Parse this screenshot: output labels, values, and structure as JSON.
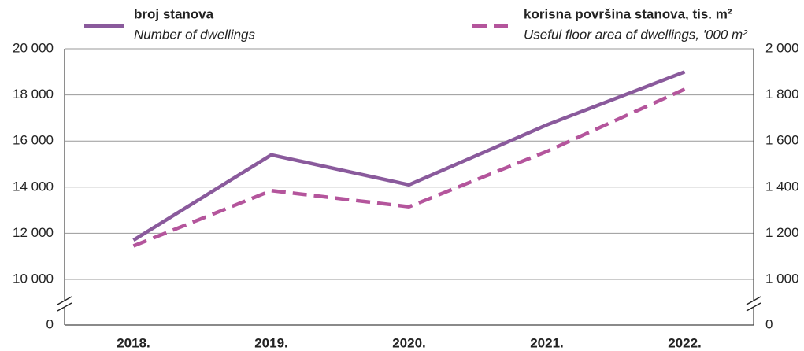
{
  "chart_data": {
    "type": "line",
    "categories": [
      "2018.",
      "2019.",
      "2020.",
      "2021.",
      "2022."
    ],
    "series": [
      {
        "name": "broj stanova",
        "name_en": "Number of dwellings",
        "color": "#8a5a9c",
        "dash": false,
        "values": [
          11700,
          15400,
          14100,
          16700,
          19000
        ]
      },
      {
        "name": "korisna površina stanova, tis. m²",
        "name_en": "Useful floor area of dwellings, '000 m²",
        "color": "#b4559c",
        "dash": true,
        "axis": "y2",
        "values": [
          1145,
          1385,
          1315,
          1555,
          1825
        ]
      }
    ],
    "ylim": [
      0,
      20000
    ],
    "y_break": [
      0,
      10000
    ],
    "yticks": [
      {
        "value": 0,
        "label": "0"
      },
      {
        "value": 10000,
        "label": "10 000"
      },
      {
        "value": 12000,
        "label": "12 000"
      },
      {
        "value": 14000,
        "label": "14 000"
      },
      {
        "value": 16000,
        "label": "16 000"
      },
      {
        "value": 18000,
        "label": "18 000"
      },
      {
        "value": 20000,
        "label": "20 000"
      }
    ],
    "y2lim": [
      0,
      2000
    ],
    "y2_break": [
      0,
      1000
    ],
    "y2ticks": [
      {
        "value": 0,
        "label": "0"
      },
      {
        "value": 1000,
        "label": "1 000"
      },
      {
        "value": 1200,
        "label": "1 200"
      },
      {
        "value": 1400,
        "label": "1 400"
      },
      {
        "value": 1600,
        "label": "1 600"
      },
      {
        "value": 1800,
        "label": "1 800"
      },
      {
        "value": 2000,
        "label": "2 000"
      }
    ],
    "grid": true
  }
}
